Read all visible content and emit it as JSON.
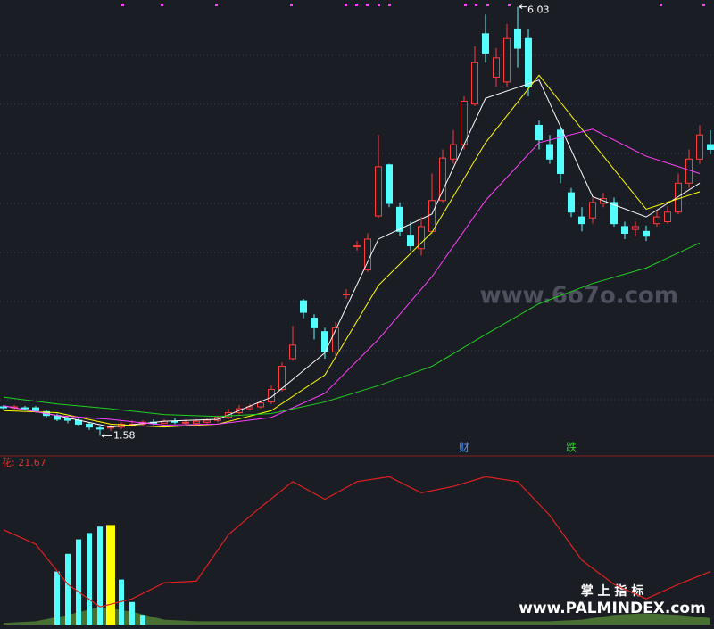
{
  "chart_data": {
    "type": "candlestick",
    "categories": [
      null,
      null,
      null,
      null,
      null,
      null,
      null,
      null,
      null,
      null,
      null,
      null,
      null,
      null,
      null,
      null,
      null,
      null,
      null,
      null,
      null,
      null,
      null,
      null,
      null,
      null,
      null,
      null,
      null,
      null,
      null,
      null,
      null,
      null,
      null,
      null,
      null,
      null,
      null,
      null,
      null,
      null,
      null,
      null,
      null,
      null,
      null,
      null,
      null,
      null,
      null,
      null,
      null,
      null,
      null,
      null,
      null,
      null,
      null,
      null,
      null,
      null,
      null,
      null,
      null,
      null,
      null
    ],
    "ohlc": [
      [
        1.88,
        1.9,
        1.85,
        1.87
      ],
      [
        1.87,
        1.9,
        1.85,
        1.88
      ],
      [
        1.87,
        1.89,
        1.84,
        1.86
      ],
      [
        1.87,
        1.89,
        1.82,
        1.84
      ],
      [
        1.83,
        1.85,
        1.77,
        1.79
      ],
      [
        1.79,
        1.81,
        1.73,
        1.75
      ],
      [
        1.76,
        1.78,
        1.71,
        1.74
      ],
      [
        1.74,
        1.76,
        1.68,
        1.7
      ],
      [
        1.7,
        1.72,
        1.64,
        1.67
      ],
      [
        1.66,
        1.68,
        1.58,
        1.65
      ],
      [
        1.66,
        1.69,
        1.63,
        1.67
      ],
      [
        1.67,
        1.72,
        1.65,
        1.7
      ],
      [
        1.7,
        1.74,
        1.68,
        1.7
      ],
      [
        1.7,
        1.74,
        1.68,
        1.72
      ],
      [
        1.72,
        1.75,
        1.69,
        1.71
      ],
      [
        1.71,
        1.75,
        1.7,
        1.73
      ],
      [
        1.73,
        1.76,
        1.7,
        1.72
      ],
      [
        1.72,
        1.75,
        1.7,
        1.72
      ],
      [
        1.71,
        1.75,
        1.7,
        1.73
      ],
      [
        1.72,
        1.76,
        1.7,
        1.74
      ],
      [
        1.74,
        1.79,
        1.72,
        1.77
      ],
      [
        1.77,
        1.86,
        1.75,
        1.82
      ],
      [
        1.82,
        1.9,
        1.8,
        1.86
      ],
      [
        1.86,
        1.91,
        1.84,
        1.88
      ],
      [
        1.88,
        1.95,
        1.86,
        1.92
      ],
      [
        1.93,
        2.1,
        1.91,
        2.06
      ],
      [
        2.06,
        2.34,
        2.04,
        2.3
      ],
      [
        2.38,
        2.72,
        2.36,
        2.52
      ],
      [
        2.98,
        3.0,
        2.8,
        2.86
      ],
      [
        2.8,
        2.84,
        2.58,
        2.7
      ],
      [
        2.66,
        2.7,
        2.38,
        2.45
      ],
      [
        2.45,
        2.76,
        2.4,
        2.7
      ],
      [
        3.05,
        3.1,
        3.0,
        3.05
      ],
      [
        3.55,
        3.6,
        3.5,
        3.55
      ],
      [
        3.3,
        3.68,
        3.28,
        3.62
      ],
      [
        3.86,
        4.7,
        3.84,
        4.37
      ],
      [
        4.39,
        4.4,
        3.95,
        3.99
      ],
      [
        3.95,
        4.0,
        3.65,
        3.7
      ],
      [
        3.66,
        3.8,
        3.5,
        3.55
      ],
      [
        3.52,
        3.85,
        3.45,
        3.75
      ],
      [
        3.7,
        4.3,
        3.68,
        4.02
      ],
      [
        4.02,
        4.55,
        4.0,
        4.46
      ],
      [
        4.45,
        4.75,
        4.4,
        4.6
      ],
      [
        4.6,
        5.1,
        4.55,
        5.05
      ],
      [
        5.02,
        5.62,
        5.0,
        5.45
      ],
      [
        5.75,
        5.95,
        5.45,
        5.55
      ],
      [
        5.3,
        5.6,
        5.2,
        5.5
      ],
      [
        5.25,
        5.85,
        5.2,
        5.7
      ],
      [
        5.8,
        6.03,
        5.4,
        5.6
      ],
      [
        5.7,
        5.8,
        5.1,
        5.2
      ],
      [
        4.8,
        4.85,
        4.55,
        4.65
      ],
      [
        4.6,
        4.7,
        4.4,
        4.45
      ],
      [
        4.75,
        4.8,
        4.2,
        4.3
      ],
      [
        4.1,
        4.15,
        3.85,
        3.9
      ],
      [
        3.85,
        3.95,
        3.7,
        3.78
      ],
      [
        3.84,
        4.05,
        3.78,
        4.0
      ],
      [
        3.99,
        4.1,
        3.95,
        4.04
      ],
      [
        4.0,
        4.05,
        3.75,
        3.78
      ],
      [
        3.75,
        3.8,
        3.62,
        3.68
      ],
      [
        3.72,
        3.8,
        3.65,
        3.75
      ],
      [
        3.7,
        3.76,
        3.6,
        3.65
      ],
      [
        3.78,
        3.92,
        3.75,
        3.85
      ],
      [
        3.8,
        3.96,
        3.78,
        3.9
      ],
      [
        3.9,
        4.3,
        3.88,
        4.2
      ],
      [
        4.2,
        4.55,
        4.15,
        4.45
      ],
      [
        4.45,
        4.8,
        4.4,
        4.7
      ],
      [
        4.6,
        4.75,
        4.5,
        4.55
      ]
    ],
    "up_color": "#ff3c3c",
    "down_color": "#54ffff",
    "ylim": [
      1.38,
      6.1
    ],
    "lines": [
      {
        "color": "#ffffff",
        "x": [
          0,
          5,
          10,
          15,
          20,
          25,
          30,
          35,
          40,
          45,
          50,
          55,
          60,
          65
        ],
        "values": [
          1.89,
          1.79,
          1.67,
          1.73,
          1.75,
          1.98,
          2.44,
          3.62,
          3.88,
          5.08,
          5.27,
          4.06,
          3.85,
          4.2
        ]
      },
      {
        "color": "#ffff00",
        "x": [
          0,
          5,
          10,
          15,
          20,
          25,
          30,
          35,
          40,
          45,
          50,
          55,
          60,
          65
        ],
        "values": [
          1.84,
          1.82,
          1.7,
          1.67,
          1.7,
          1.84,
          2.21,
          3.14,
          3.69,
          4.62,
          5.32,
          4.62,
          3.93,
          4.11
        ]
      },
      {
        "color": "#ff40ff",
        "x": [
          0,
          5,
          10,
          15,
          20,
          25,
          30,
          35,
          40,
          45,
          50,
          55,
          60,
          65
        ],
        "values": [
          1.89,
          1.79,
          1.75,
          1.69,
          1.7,
          1.77,
          2.02,
          2.58,
          3.23,
          4.02,
          4.62,
          4.76,
          4.48,
          4.3
        ]
      },
      {
        "color": "#20d020",
        "x": [
          0,
          5,
          10,
          15,
          20,
          25,
          30,
          35,
          40,
          45,
          50,
          55,
          60,
          65
        ],
        "values": [
          1.98,
          1.91,
          1.86,
          1.8,
          1.78,
          1.81,
          1.93,
          2.1,
          2.3,
          2.63,
          2.95,
          3.16,
          3.32,
          3.58
        ]
      }
    ],
    "annotations": [
      {
        "text": "财",
        "x": 43,
        "color": "#4a90ff"
      },
      {
        "text": "跌",
        "x": 53,
        "color": "#30d030"
      }
    ],
    "indicator": {
      "label": "花: 21.67",
      "ylim": [
        0,
        100
      ],
      "area": {
        "color": "#4e7a34",
        "x": [
          0,
          3,
          6,
          9,
          12,
          15,
          18,
          21,
          24,
          27,
          30,
          33,
          36,
          39,
          42,
          45,
          48,
          51,
          54,
          57,
          60,
          63,
          66
        ],
        "values": [
          1,
          2,
          6,
          11,
          8,
          3,
          2,
          2,
          2,
          2,
          2,
          2,
          2,
          2,
          2,
          2,
          2,
          2,
          3,
          6,
          7,
          6,
          4
        ]
      },
      "histogram": {
        "x": [
          5,
          6,
          7,
          8,
          9,
          10,
          11,
          12,
          13
        ],
        "values": [
          33,
          44,
          53,
          57,
          61,
          62,
          28,
          14,
          6
        ],
        "colors": [
          "#54ffff",
          "#54ffff",
          "#54ffff",
          "#54ffff",
          "#54ffff",
          "#ffff00",
          "#54ffff",
          "#54ffff",
          "#54ffff"
        ]
      },
      "line": {
        "color": "#e02020",
        "x": [
          0,
          3,
          6,
          9,
          12,
          15,
          18,
          21,
          24,
          27,
          30,
          33,
          36,
          39,
          42,
          45,
          48,
          51,
          54,
          57,
          60,
          63,
          66
        ],
        "values": [
          59,
          50,
          25,
          11,
          16,
          26,
          27,
          56,
          73,
          89,
          78,
          89,
          92,
          82,
          86,
          92,
          89,
          68,
          40,
          25,
          16,
          25,
          33
        ]
      }
    }
  },
  "watermark": "www.6o7o.com",
  "footer": {
    "title": "掌 上 指 标",
    "url": "www.PALMINDEX.com"
  }
}
